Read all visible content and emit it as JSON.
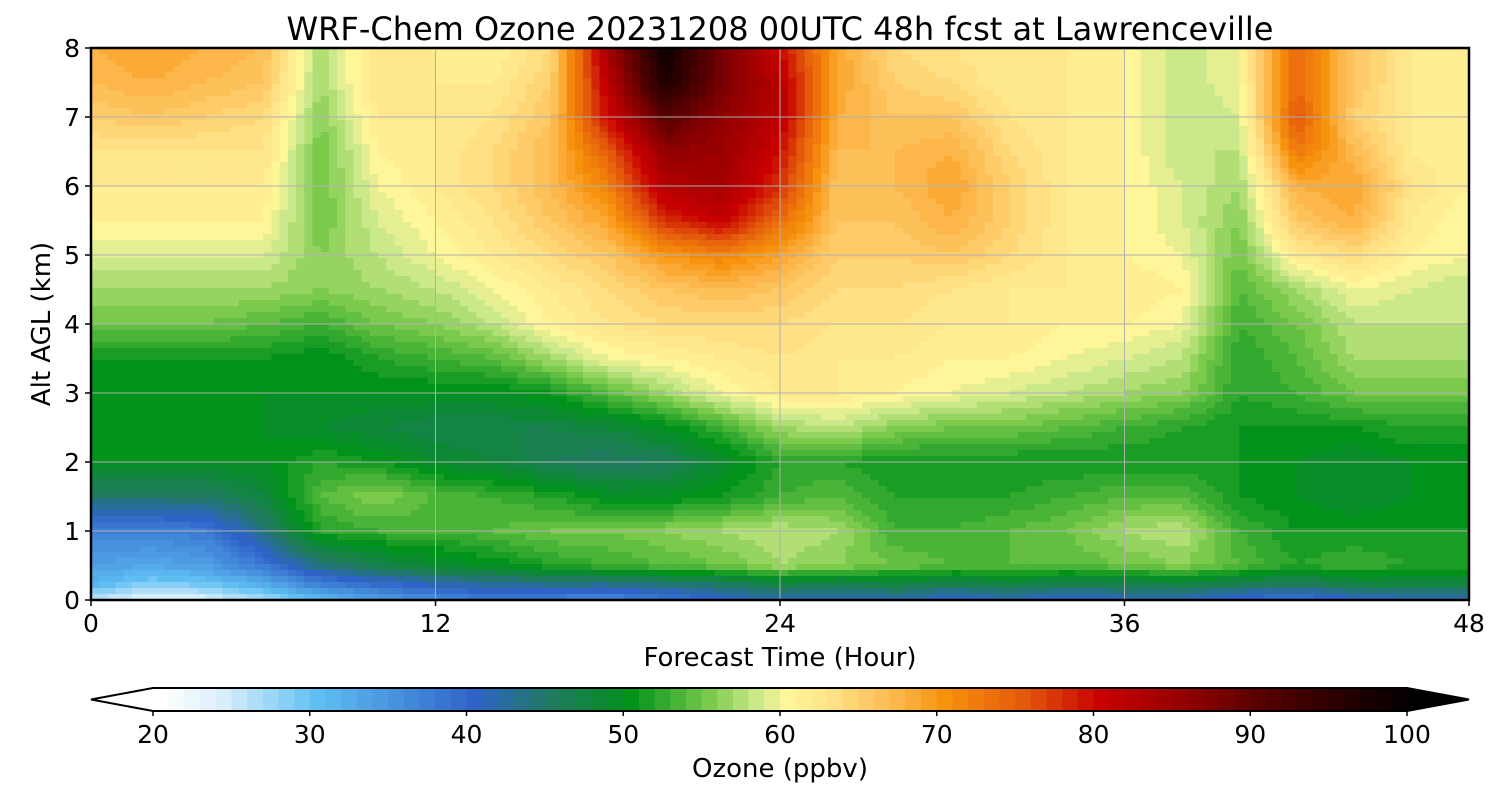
{
  "chart_data": {
    "type": "heatmap",
    "title": "WRF-Chem Ozone  20231208 00UTC 48h fcst at Lawrenceville",
    "xlabel": "Forecast Time (Hour)",
    "ylabel": "Alt AGL (km)",
    "xlim": [
      0,
      48
    ],
    "ylim": [
      0,
      8
    ],
    "xticks": [
      "0",
      "12",
      "24",
      "36",
      "48"
    ],
    "yticks": [
      "0",
      "1",
      "2",
      "3",
      "4",
      "5",
      "6",
      "7",
      "8"
    ],
    "grid": true,
    "colorbar": {
      "label": "Ozone  (ppbv)",
      "range": [
        20,
        100
      ],
      "step": 1,
      "extend": "both",
      "ticks": [
        "20",
        "30",
        "40",
        "50",
        "60",
        "70",
        "80",
        "90",
        "100"
      ],
      "stops": [
        {
          "v": 20,
          "c": "#ffffff"
        },
        {
          "v": 24,
          "c": "#d9eefb"
        },
        {
          "v": 30,
          "c": "#5fbff2"
        },
        {
          "v": 40,
          "c": "#2f63c8"
        },
        {
          "v": 45,
          "c": "#1f7a5e"
        },
        {
          "v": 50,
          "c": "#00921a"
        },
        {
          "v": 55,
          "c": "#7cca4c"
        },
        {
          "v": 58,
          "c": "#cbe98a"
        },
        {
          "v": 60,
          "c": "#fff599"
        },
        {
          "v": 63,
          "c": "#ffe085"
        },
        {
          "v": 67,
          "c": "#fcb64a"
        },
        {
          "v": 70,
          "c": "#f7920c"
        },
        {
          "v": 75,
          "c": "#e45a0c"
        },
        {
          "v": 80,
          "c": "#c80000"
        },
        {
          "v": 85,
          "c": "#960000"
        },
        {
          "v": 90,
          "c": "#5a0000"
        },
        {
          "v": 95,
          "c": "#2a0000"
        },
        {
          "v": 100,
          "c": "#000000"
        }
      ]
    },
    "x": [
      0,
      2,
      4,
      6,
      8,
      10,
      12,
      14,
      16,
      18,
      20,
      22,
      24,
      26,
      28,
      30,
      32,
      34,
      36,
      38,
      40,
      42,
      44,
      46,
      48
    ],
    "y": [
      0,
      0.25,
      0.5,
      1,
      1.5,
      2,
      2.5,
      3,
      3.5,
      4,
      4.5,
      5,
      5.5,
      6,
      6.5,
      7,
      7.5,
      8
    ],
    "z": [
      [
        26,
        23,
        24,
        27,
        31,
        34,
        36,
        38,
        37,
        36,
        38,
        40,
        42,
        41,
        42,
        40,
        41,
        40,
        41,
        41,
        39,
        38,
        40,
        41,
        41
      ],
      [
        32,
        29,
        30,
        33,
        38,
        40,
        42,
        43,
        44,
        44,
        45,
        46,
        48,
        47,
        48,
        47,
        48,
        47,
        47,
        48,
        47,
        46,
        48,
        48,
        48
      ],
      [
        34,
        33,
        34,
        38,
        44,
        47,
        49,
        50,
        52,
        53,
        54,
        55,
        57,
        56,
        55,
        54,
        54,
        54,
        55,
        56,
        54,
        52,
        53,
        52,
        52
      ],
      [
        37,
        37,
        38,
        44,
        52,
        53,
        53,
        54,
        55,
        55,
        56,
        57,
        58,
        57,
        53,
        53,
        54,
        55,
        57,
        58,
        53,
        51,
        51,
        51,
        51
      ],
      [
        45,
        45,
        45,
        48,
        54,
        56,
        54,
        53,
        52,
        50,
        50,
        51,
        53,
        54,
        52,
        52,
        52,
        53,
        54,
        54,
        51,
        50,
        49,
        50,
        50
      ],
      [
        50,
        50,
        50,
        50,
        52,
        51,
        49,
        48,
        46,
        45,
        46,
        49,
        52,
        52,
        51,
        51,
        51,
        51,
        51,
        51,
        51,
        50,
        49,
        50,
        50
      ],
      [
        50,
        50,
        50,
        50,
        49,
        48,
        47,
        47,
        47,
        48,
        50,
        53,
        57,
        58,
        56,
        55,
        55,
        54,
        53,
        52,
        51,
        51,
        51,
        52,
        52
      ],
      [
        50,
        50,
        50,
        50,
        50,
        50,
        50,
        50,
        51,
        54,
        57,
        60,
        62,
        62,
        61,
        60,
        59,
        58,
        57,
        56,
        52,
        53,
        55,
        55,
        55
      ],
      [
        51,
        51,
        51,
        51,
        50,
        52,
        53,
        54,
        57,
        60,
        61,
        62,
        63,
        62,
        62,
        61,
        61,
        60,
        59,
        58,
        52,
        54,
        57,
        57,
        57
      ],
      [
        55,
        55,
        55,
        54,
        53,
        55,
        56,
        58,
        61,
        63,
        64,
        64,
        64,
        63,
        63,
        62,
        62,
        61,
        61,
        60,
        53,
        55,
        58,
        58,
        58
      ],
      [
        57,
        57,
        57,
        57,
        56,
        57,
        58,
        60,
        62,
        64,
        66,
        67,
        66,
        64,
        64,
        63,
        62,
        62,
        62,
        61,
        54,
        57,
        60,
        59,
        58
      ],
      [
        59,
        59,
        59,
        59,
        56,
        58,
        60,
        62,
        64,
        66,
        70,
        72,
        69,
        65,
        65,
        66,
        64,
        62,
        61,
        60,
        55,
        62,
        64,
        61,
        60
      ],
      [
        61,
        61,
        61,
        61,
        55,
        59,
        61,
        63,
        66,
        69,
        78,
        81,
        74,
        66,
        66,
        68,
        65,
        62,
        61,
        59,
        56,
        66,
        68,
        62,
        60
      ],
      [
        62,
        62,
        62,
        62,
        55,
        60,
        62,
        64,
        67,
        72,
        83,
        84,
        78,
        66,
        67,
        69,
        65,
        62,
        61,
        59,
        57,
        68,
        69,
        63,
        61
      ],
      [
        63,
        63,
        63,
        63,
        55,
        61,
        62,
        64,
        67,
        75,
        86,
        85,
        80,
        67,
        67,
        68,
        64,
        62,
        61,
        58,
        58,
        73,
        67,
        62,
        61
      ],
      [
        65,
        66,
        65,
        64,
        56,
        62,
        62,
        63,
        66,
        80,
        91,
        86,
        82,
        68,
        66,
        66,
        63,
        62,
        61,
        58,
        59,
        76,
        65,
        62,
        61
      ],
      [
        67,
        68,
        67,
        66,
        57,
        63,
        62,
        62,
        65,
        82,
        97,
        88,
        82,
        69,
        65,
        64,
        62,
        62,
        61,
        58,
        60,
        74,
        66,
        62,
        61
      ],
      [
        68,
        69,
        68,
        67,
        57,
        63,
        62,
        61,
        64,
        84,
        99,
        88,
        80,
        69,
        64,
        63,
        62,
        62,
        61,
        58,
        60,
        74,
        66,
        62,
        61
      ]
    ]
  }
}
